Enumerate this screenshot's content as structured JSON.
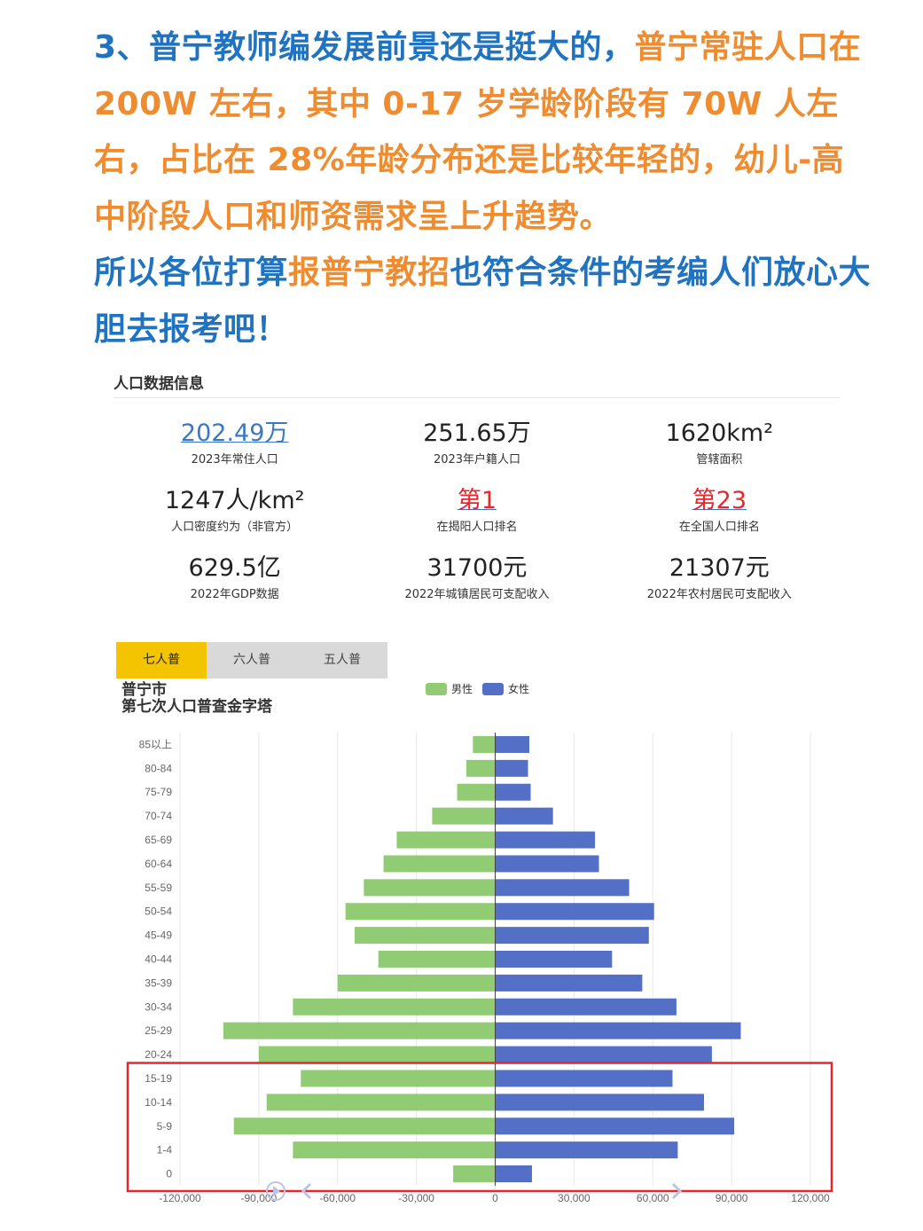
{
  "headline": {
    "line1_blue": "3、普宁教师编发展前景还是挺大的，",
    "line1_orange": "普宁常驻人口在 200W 左右，其中 0-17 岁学龄阶段有 70W 人左右，占比在 28%年龄分布还是比较年轻的，幼儿-高中阶段人口和师资需求呈上升趋势。",
    "line2_blue_a": "所以各位打算",
    "line2_orange": "报普宁教招",
    "line2_blue_b": "也符合条件的考编人们放心大胆去报考吧！"
  },
  "info": {
    "title": "人口数据信息",
    "stats": [
      {
        "value": "202.49万",
        "label": "2023年常住人口"
      },
      {
        "value": "251.65万",
        "label": "2023年户籍人口"
      },
      {
        "value": "1620km²",
        "label": "管辖面积"
      },
      {
        "value": "1247人/km²",
        "label": "人口密度约为（非官方）"
      },
      {
        "value": "第1",
        "label": "在揭阳人口排名"
      },
      {
        "value": "第23",
        "label": "在全国人口排名"
      },
      {
        "value": "629.5亿",
        "label": "2022年GDP数据"
      },
      {
        "value": "31700元",
        "label": "2022年城镇居民可支配收入"
      },
      {
        "value": "21307元",
        "label": "2022年农村居民可支配收入"
      }
    ]
  },
  "tabs": [
    "七人普",
    "六人普",
    "五人普"
  ],
  "chart_title": {
    "line1": "普宁市",
    "line2": "第七次人口普查金字塔"
  },
  "colors": {
    "male": "#91cc75",
    "female": "#5470c6",
    "highlight": "#e8262c",
    "tab_active": "#f5c400"
  },
  "chart_data": {
    "type": "bar",
    "orientation": "horizontal",
    "title": "普宁市第七次人口普查金字塔",
    "categories": [
      "85以上",
      "80-84",
      "75-79",
      "70-74",
      "65-69",
      "60-64",
      "55-59",
      "50-54",
      "45-49",
      "40-44",
      "35-39",
      "30-34",
      "25-29",
      "20-24",
      "15-19",
      "10-14",
      "5-9",
      "1-4",
      "0"
    ],
    "series": [
      {
        "name": "男性",
        "values": [
          -8500,
          -11000,
          -14500,
          -24000,
          -37500,
          -42500,
          -50000,
          -57000,
          -53500,
          -44500,
          -60000,
          -77000,
          -103500,
          -90000,
          -74000,
          -87000,
          -99500,
          -77000,
          -16000
        ]
      },
      {
        "name": "女性",
        "values": [
          13000,
          12500,
          13500,
          22000,
          38000,
          39500,
          51000,
          60500,
          58500,
          44500,
          56000,
          69000,
          93500,
          82500,
          67500,
          79500,
          91000,
          69500,
          14000
        ]
      }
    ],
    "xlim": [
      -120000,
      120000
    ],
    "x_ticks": [
      "-120,000",
      "-90,000",
      "-60,000",
      "-30,000",
      "0",
      "30,000",
      "60,000",
      "90,000",
      "120,000"
    ],
    "legend_position": "top-center",
    "grid": true,
    "highlight_categories": [
      "15-19",
      "10-14",
      "5-9",
      "1-4",
      "0"
    ]
  }
}
